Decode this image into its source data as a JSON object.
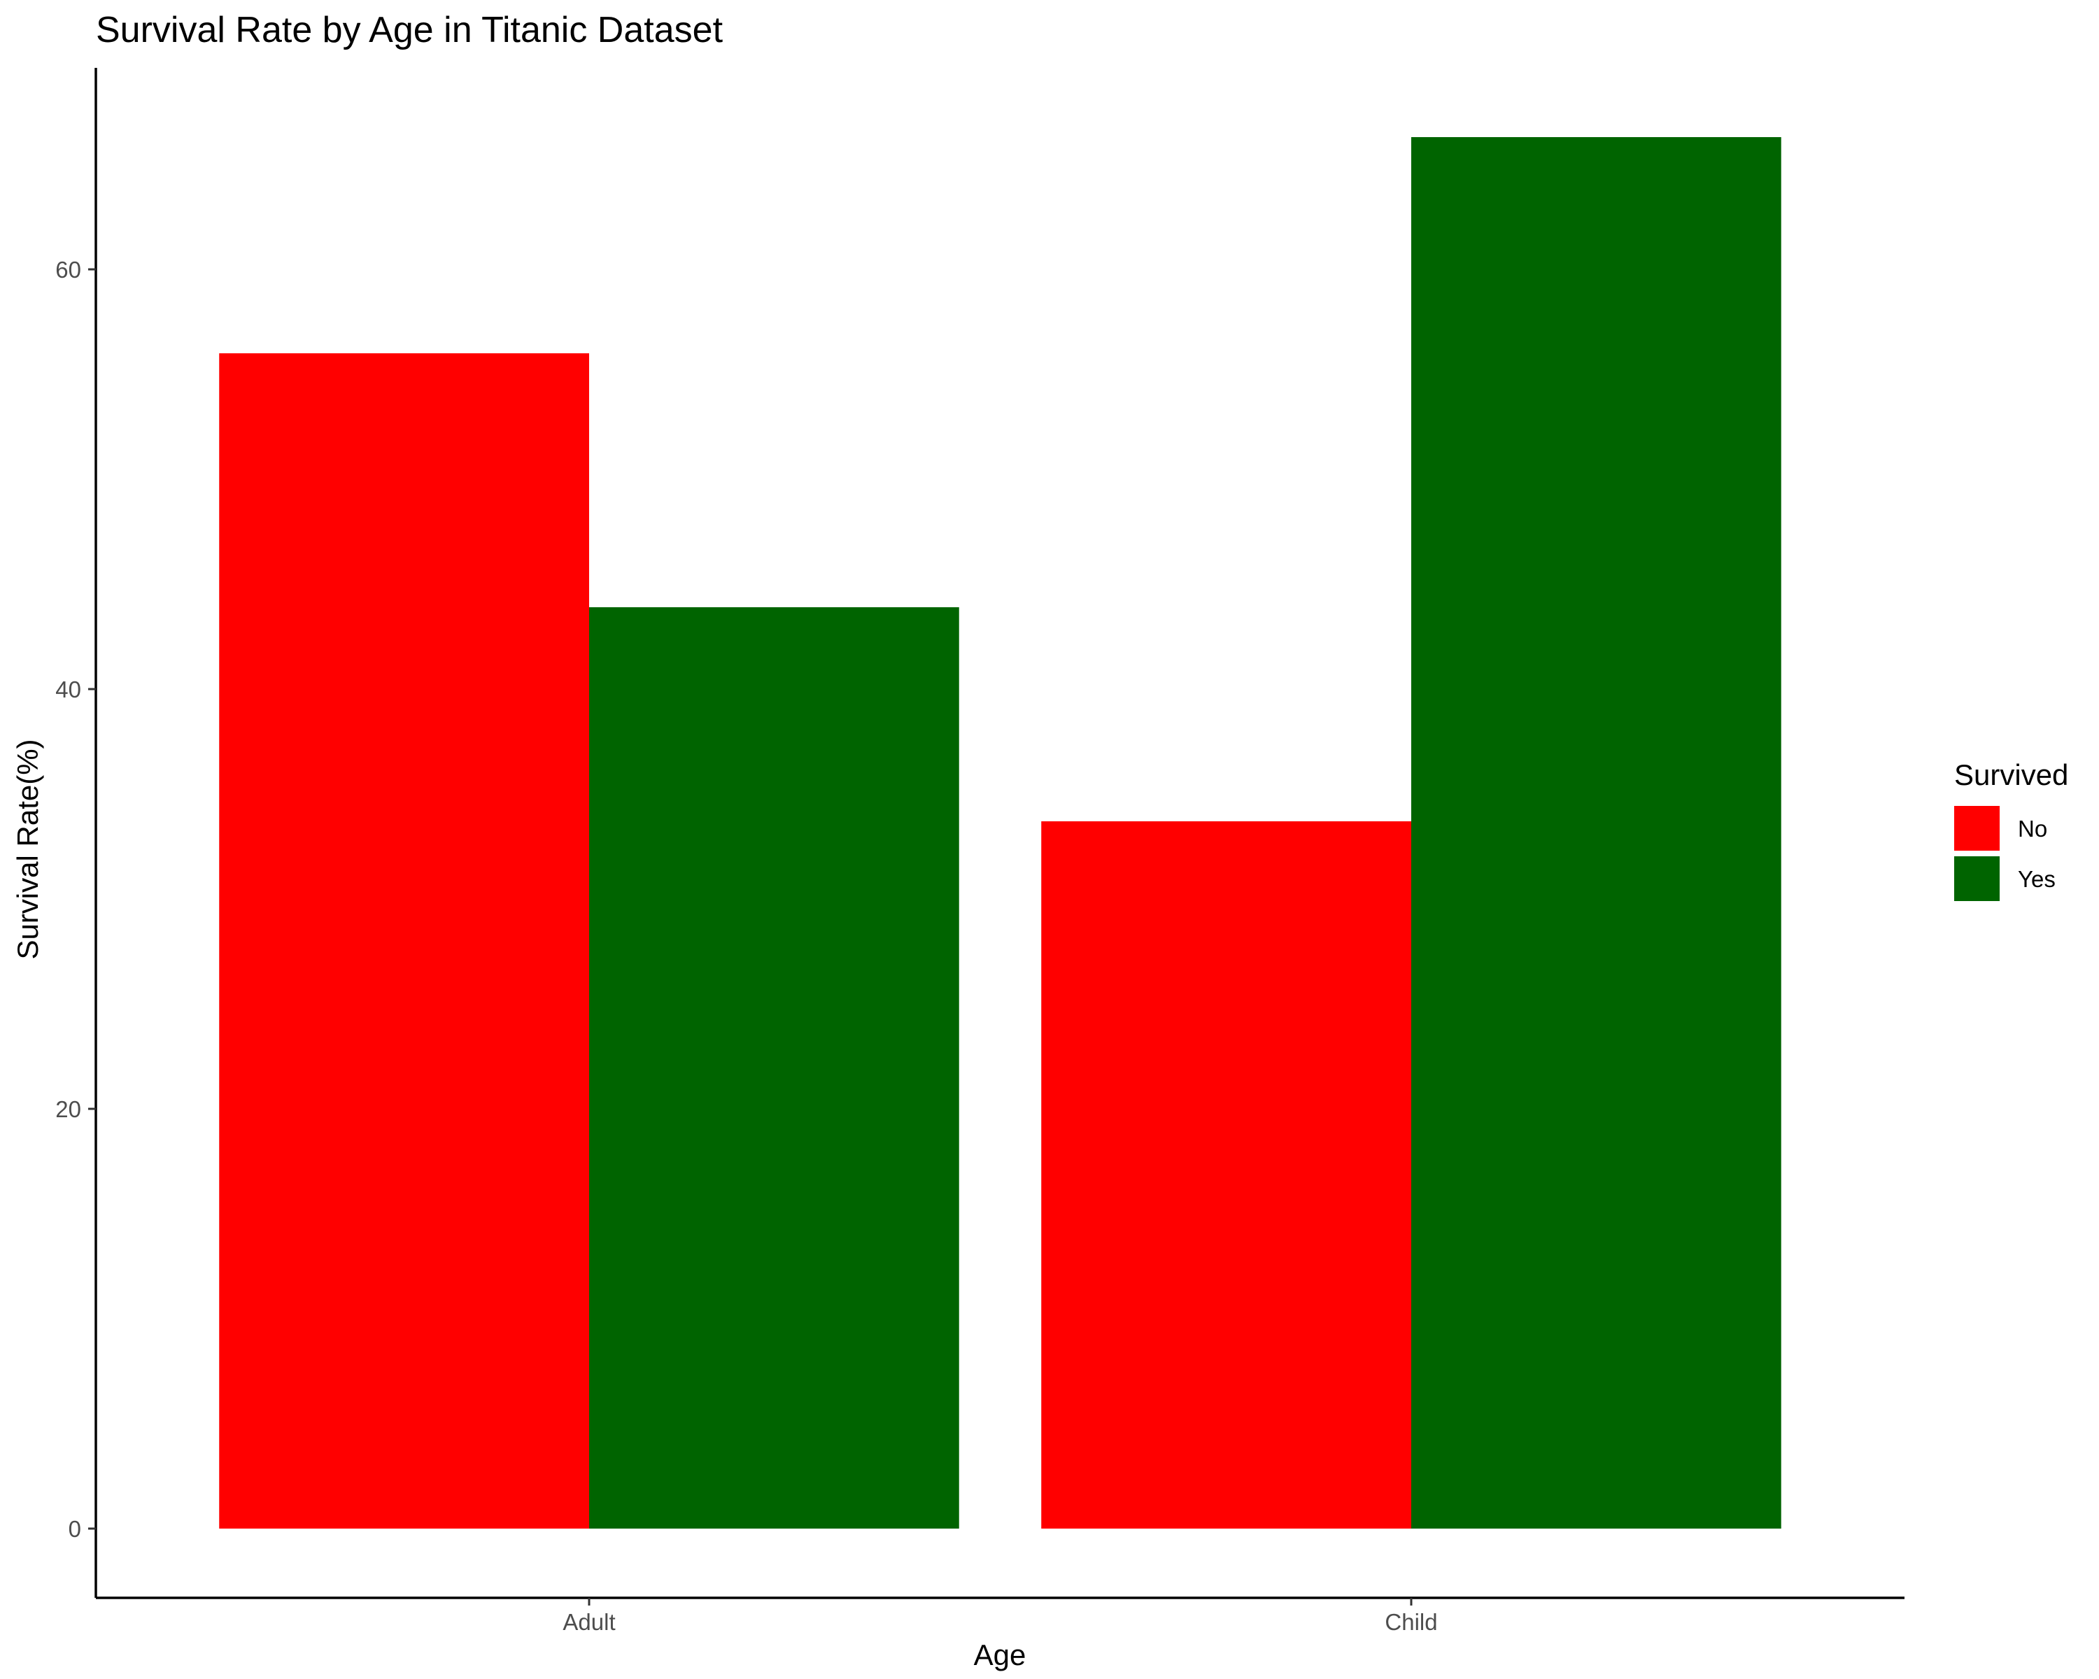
{
  "chart_data": {
    "type": "bar",
    "title": "Survival Rate by Age in Titanic Dataset",
    "xlabel": "Age",
    "ylabel": "Survival Rate(%)",
    "categories": [
      "Adult",
      "Child"
    ],
    "series": [
      {
        "name": "No",
        "values": [
          56,
          33.7
        ],
        "color": "#ff0000"
      },
      {
        "name": "Yes",
        "values": [
          43.9,
          66.3
        ],
        "color": "#006400"
      }
    ],
    "yticks": [
      0,
      20,
      40,
      60
    ],
    "ylim": [
      -3.3,
      69.6
    ],
    "legend_title": "Survived",
    "legend_position": "right",
    "grid": false
  }
}
